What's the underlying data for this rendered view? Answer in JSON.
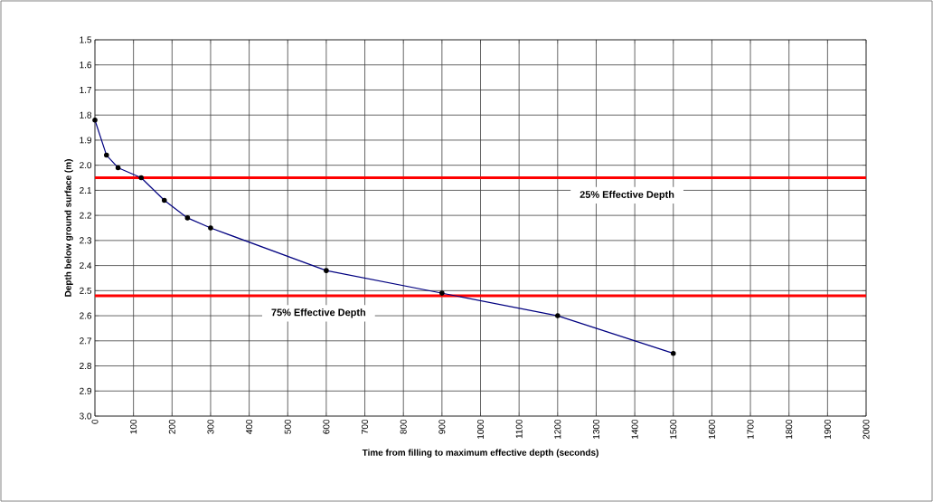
{
  "chart_data": {
    "type": "line",
    "xlabel": "Time from filling to maximum effective depth (seconds)",
    "ylabel": "Depth below ground surface (m)",
    "x": [
      0,
      30,
      60,
      120,
      180,
      240,
      300,
      600,
      900,
      1200,
      1500
    ],
    "series": [
      {
        "color": "#000080",
        "values": [
          1.82,
          1.96,
          2.01,
          2.05,
          2.14,
          2.21,
          2.25,
          2.42,
          2.51,
          2.6,
          2.75
        ]
      }
    ],
    "xlim": [
      0,
      2000
    ],
    "xticks": [
      0,
      100,
      200,
      300,
      400,
      500,
      600,
      700,
      800,
      900,
      1000,
      1100,
      1200,
      1300,
      1400,
      1500,
      1600,
      1700,
      1800,
      1900,
      2000
    ],
    "ylim": [
      3.0,
      1.5
    ],
    "yticks": [
      1.5,
      1.6,
      1.7,
      1.8,
      1.9,
      {
        "value": 2,
        "label": "2.0"
      },
      2.1,
      2.2,
      2.3,
      2.4,
      2.5,
      2.6,
      2.7,
      2.8,
      2.9,
      {
        "value": 3,
        "label": "3.0"
      }
    ],
    "ref_lines": [
      {
        "axis": "y",
        "value": 2.05,
        "label": "25% Effective Depth",
        "color": "#ff0000"
      },
      {
        "axis": "y",
        "value": 2.52,
        "label": "75% Effective Depth",
        "color": "#ff0000"
      }
    ],
    "grid": true,
    "marker": "circle",
    "line_style": "solid"
  }
}
